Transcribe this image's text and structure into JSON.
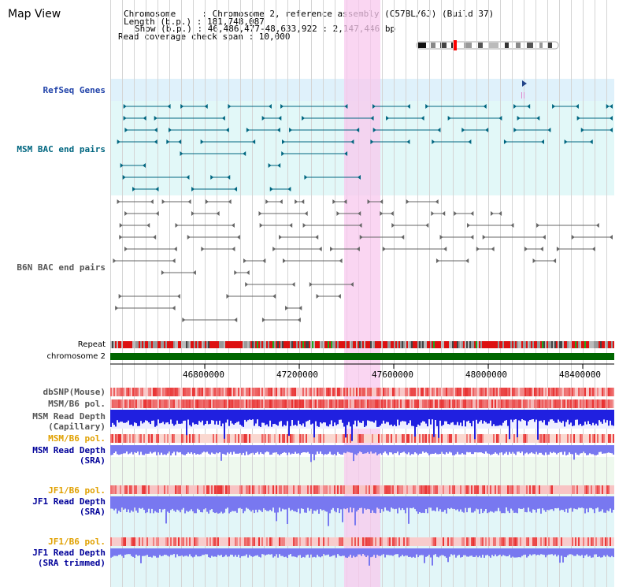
{
  "title": "Map View",
  "info": {
    "chromosome_line": "Chromosome     : Chromosome 2, reference assembly (C57BL/6J) (Build 37)",
    "length_line": "Length (b.p.) : 181,748,087",
    "show_line": "Show (b.p.) : 46,486,477-48,633,922 : 2,147,446 bp",
    "coverage_line": "Read coverage check span : 10,000"
  },
  "tracks": {
    "refseq": "RefSeq Genes",
    "msm_bac": "MSM BAC end pairs",
    "b6n_bac": "B6N BAC end pairs",
    "repeat": "Repeat",
    "chromosome": "chromosome 2",
    "dbsnp": "dbSNP(Mouse)",
    "msm_b6_pol": "MSM/B6 pol.",
    "msm_read_depth_cap_1": "MSM Read Depth",
    "msm_read_depth_cap_2": "(Capillary)",
    "msm_b6_pol_2": "MSM/B6 pol.",
    "msm_read_depth_sra_1": "MSM Read Depth",
    "msm_read_depth_sra_2": "(SRA)",
    "jf1_b6_pol": "JF1/B6 pol.",
    "jf1_read_depth_1": "JF1 Read Depth",
    "jf1_read_depth_2": "(SRA)",
    "jf1_b6_pol_2": "JF1/B6 pol.",
    "jf1_read_depth_trim_1": "JF1 Read Depth",
    "jf1_read_depth_trim_2": "(SRA trimmed)"
  },
  "axis_ticks": [
    "46800000",
    "47200000",
    "47600000",
    "48000000",
    "48400000"
  ],
  "colors": {
    "refseq_band": "#dff1fb",
    "msm_band": "#e2f8f8",
    "highlight": "#f8d8f0",
    "chromosome_bar": "#006600",
    "teal_feature": "#006680",
    "gray_feature": "#666666",
    "depth_blue": "#2020e0",
    "depth_light": "#7878f0",
    "pol_red": "#e83030"
  }
}
